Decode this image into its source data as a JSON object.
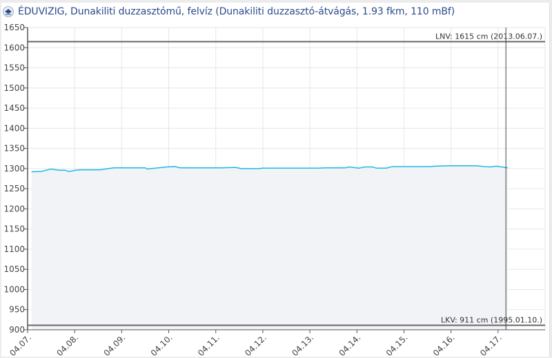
{
  "header": {
    "title": "ÉDUVIZIG, Dunakiliti duzzasztómű, felvíz (Dunakiliti duzzasztó-átvágás, 1.93 fkm, 110 mBf)",
    "logo_icon": "eduvizig-logo-icon"
  },
  "chart_data": {
    "type": "area",
    "title": "ÉDUVIZIG, Dunakiliti duzzasztómű, felvíz (Dunakiliti duzzasztó-átvágás, 1.93 fkm, 110 mBf)",
    "xlabel": "",
    "ylabel": "",
    "ylim": [
      900,
      1650
    ],
    "yticks": [
      "900",
      "950",
      "1000",
      "1050",
      "1100",
      "1150",
      "1200",
      "1250",
      "1300",
      "1350",
      "1400",
      "1450",
      "1500",
      "1550",
      "1600",
      "1650"
    ],
    "xlim": [
      "04.07. 00:00",
      "04.18. 00:00"
    ],
    "xticks": [
      "04.07.",
      "04.08.",
      "04.09.",
      "04.10.",
      "04.11.",
      "04.12.",
      "04.13.",
      "04.14.",
      "04.15.",
      "04.16.",
      "04.17."
    ],
    "grid": true,
    "series_color": "#1ab7ea",
    "fill_color": "#f2f3f7",
    "series": [
      {
        "x": [
          "04.07. 02:00",
          "04.07. 07:00",
          "04.07. 12:00",
          "04.07. 16:00",
          "04.07. 19:00",
          "04.07. 21:00",
          "04.08. 02:00",
          "04.08. 13:00",
          "04.08. 17:00",
          "04.08. 20:00",
          "04.09. 12:00",
          "04.09. 13:00",
          "04.09. 17:00",
          "04.09. 23:00",
          "04.10. 03:00",
          "04.10. 06:00",
          "04.11. 03:00",
          "04.11. 10:00",
          "04.11. 13:00",
          "04.11. 22:00",
          "04.12. 00:00",
          "04.13. 04:00",
          "04.13. 08:00",
          "04.13. 18:00",
          "04.13. 20:00",
          "04.14. 01:00",
          "04.14. 04:00",
          "04.14. 08:00",
          "04.14. 10:00",
          "04.14. 15:00",
          "04.14. 18:00",
          "04.15. 13:00",
          "04.15. 16:00",
          "04.15. 23:00",
          "04.16. 13:00",
          "04.16. 17:00",
          "04.16. 20:00",
          "04.16. 23:00",
          "04.17. 02:00",
          "04.17. 05:00"
        ],
        "values": [
          1292,
          1293,
          1299,
          1296,
          1296,
          1293,
          1297,
          1297,
          1300,
          1302,
          1302,
          1299,
          1301,
          1304,
          1305,
          1302,
          1302,
          1303,
          1300,
          1300,
          1301,
          1301,
          1302,
          1302,
          1304,
          1301,
          1304,
          1304,
          1301,
          1301,
          1305,
          1305,
          1306,
          1307,
          1307,
          1305,
          1304,
          1306,
          1304,
          1302
        ]
      }
    ],
    "plot_lines": [
      {
        "label": "LNV: 1615 cm (2013.06.07.)",
        "value": 1615,
        "color": "#666666"
      },
      {
        "label": "LKV: 911 cm (1995.01.10.)",
        "value": 911,
        "color": "#666666"
      }
    ],
    "current_time": "04.17. 04:00"
  }
}
